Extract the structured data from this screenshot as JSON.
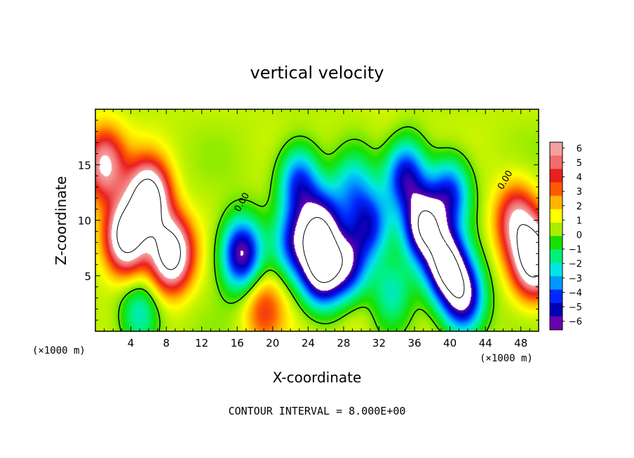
{
  "chart_data": {
    "type": "heatmap",
    "title": "vertical velocity",
    "xlabel": "X-coordinate",
    "ylabel": "Z-coordinate",
    "x_unit_left": "(×1000 m)",
    "x_unit_right": "(×1000 m)",
    "xlim": [
      0,
      50
    ],
    "ylim": [
      0,
      20
    ],
    "x_ticks": [
      4,
      8,
      12,
      16,
      20,
      24,
      28,
      32,
      36,
      40,
      44,
      48
    ],
    "y_ticks": [
      5,
      10,
      15
    ],
    "footer": "CONTOUR INTERVAL = 8.000E+00",
    "contour_labels": [
      {
        "text": "0.00",
        "x": 16.8,
        "y": 11.5
      },
      {
        "text": "0.00",
        "x": 46.5,
        "y": 13.5
      }
    ],
    "colorbar": {
      "min": -6,
      "max": 6,
      "ticks": [
        6,
        5,
        4,
        3,
        2,
        1,
        0,
        -1,
        -2,
        -3,
        -4,
        -5,
        -6
      ],
      "colors": [
        "#f5a0a0",
        "#f26b6b",
        "#ea2020",
        "#ff5a00",
        "#ffb400",
        "#ffff00",
        "#a8ee00",
        "#18e000",
        "#00f07a",
        "#00e6e6",
        "#0098ff",
        "#0028ff",
        "#0000b4",
        "#6a00b0"
      ],
      "clipped_color": "#ffffff"
    },
    "features": [
      {
        "x": 3.5,
        "y": 8.5,
        "value": 9
      },
      {
        "x": 6,
        "y": 12,
        "value": 9
      },
      {
        "x": 8.5,
        "y": 7,
        "value": 9
      },
      {
        "x": 1,
        "y": 15,
        "value": 5.5
      },
      {
        "x": 49.5,
        "y": 6.5,
        "value": 9
      },
      {
        "x": 47.5,
        "y": 10,
        "value": 5
      },
      {
        "x": 19,
        "y": 2,
        "value": 3
      },
      {
        "x": 5,
        "y": 1.5,
        "value": -3
      },
      {
        "x": 16.5,
        "y": 7,
        "value": -7
      },
      {
        "x": 22.5,
        "y": 8,
        "value": -4.5
      },
      {
        "x": 25.5,
        "y": 5.5,
        "value": -8
      },
      {
        "x": 25.5,
        "y": 9.5,
        "value": -6.5
      },
      {
        "x": 28.5,
        "y": 6,
        "value": -5.5
      },
      {
        "x": 31,
        "y": 9.5,
        "value": -5
      },
      {
        "x": 23,
        "y": 13.5,
        "value": -5
      },
      {
        "x": 37,
        "y": 9.5,
        "value": -8
      },
      {
        "x": 39.5,
        "y": 6,
        "value": -8
      },
      {
        "x": 41.5,
        "y": 3,
        "value": -7
      },
      {
        "x": 35,
        "y": 14,
        "value": -5.5
      },
      {
        "x": 40,
        "y": 12.5,
        "value": -5
      },
      {
        "x": 29,
        "y": 13,
        "value": -3
      },
      {
        "x": 33.5,
        "y": 3.5,
        "value": -2.5
      },
      {
        "x": 29.5,
        "y": 1,
        "value": 0.8
      },
      {
        "x": 33,
        "y": 17,
        "value": 0.5
      }
    ]
  }
}
